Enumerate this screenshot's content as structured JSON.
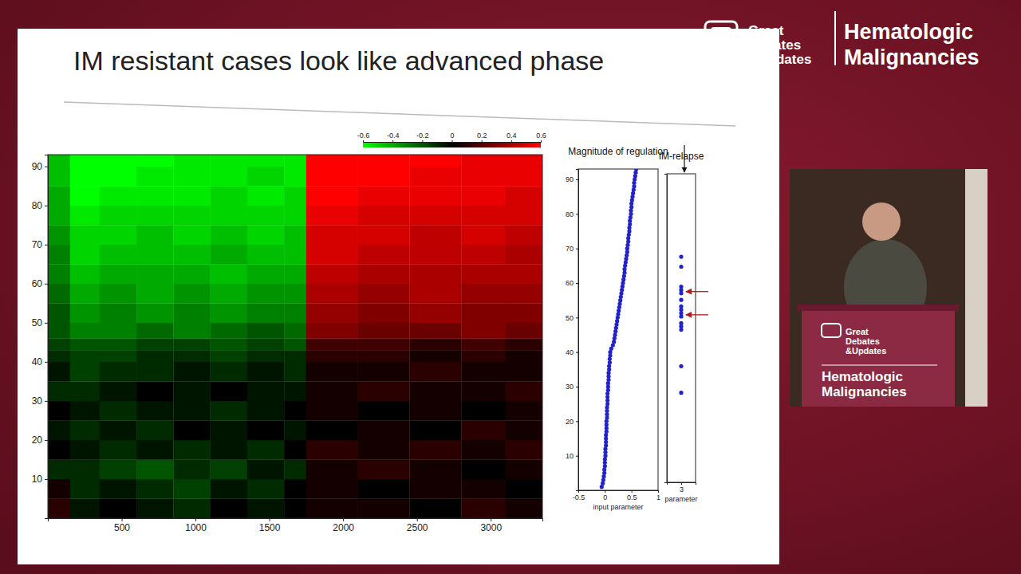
{
  "page": {
    "logo_lines": [
      "Great",
      "Debates",
      "&Updates"
    ],
    "conference_lines": [
      "Hematologic",
      "Malignancies"
    ],
    "podium_logo_lines": [
      "Great",
      "Debates",
      "&Updates"
    ],
    "podium_conference_lines": [
      "Hematologic",
      "Malignancies"
    ]
  },
  "chart_data": [
    {
      "type": "heatmap",
      "title": "IM resistant cases look like advanced phase",
      "xlim": [
        0,
        3350
      ],
      "ylim": [
        0,
        93
      ],
      "xticks": [
        500,
        1000,
        1500,
        2000,
        2500,
        3000
      ],
      "yticks": [
        10,
        20,
        30,
        40,
        50,
        60,
        70,
        80,
        90
      ],
      "x_edges": [
        0,
        150,
        350,
        600,
        850,
        1100,
        1350,
        1600,
        1750,
        2100,
        2450,
        2800,
        3100,
        3350
      ],
      "y_edges": [
        0,
        5,
        10,
        15,
        20,
        25,
        30,
        35,
        40,
        43,
        46,
        50,
        55,
        60,
        65,
        70,
        75,
        80,
        85,
        90,
        93
      ],
      "cells": [
        [
          0.1,
          -0.05,
          0,
          -0.05,
          -0.1,
          0,
          -0.05,
          0,
          0.05,
          0.05,
          0,
          0.1,
          0.05
        ],
        [
          0.05,
          -0.1,
          -0.05,
          -0.1,
          -0.15,
          -0.05,
          -0.1,
          0,
          0.05,
          0,
          0.05,
          0.05,
          0
        ],
        [
          -0.1,
          -0.1,
          -0.15,
          -0.2,
          -0.1,
          -0.15,
          -0.05,
          -0.1,
          0.05,
          0.1,
          0.05,
          0,
          0.05
        ],
        [
          0,
          -0.05,
          -0.1,
          -0.05,
          -0.1,
          -0.05,
          -0.1,
          0,
          0.1,
          0.05,
          0.1,
          0.05,
          0.1
        ],
        [
          -0.05,
          -0.1,
          -0.05,
          -0.1,
          0,
          -0.05,
          0,
          -0.05,
          0,
          0.05,
          0,
          0.1,
          0.05
        ],
        [
          0,
          -0.05,
          -0.1,
          -0.05,
          -0.05,
          -0.1,
          -0.05,
          0,
          0.05,
          0,
          0.05,
          0,
          0.05
        ],
        [
          -0.1,
          -0.1,
          -0.05,
          0,
          -0.05,
          0,
          -0.05,
          -0.05,
          0.05,
          0.1,
          0.05,
          0.05,
          0.1
        ],
        [
          -0.05,
          -0.15,
          -0.1,
          -0.1,
          -0.05,
          -0.1,
          -0.05,
          -0.1,
          0.05,
          0.05,
          0.1,
          0.05,
          0.05
        ],
        [
          -0.1,
          -0.15,
          -0.15,
          -0.1,
          -0.1,
          -0.15,
          -0.1,
          -0.1,
          0.1,
          0.1,
          0.05,
          0.1,
          0.05
        ],
        [
          -0.15,
          -0.2,
          -0.2,
          -0.15,
          -0.15,
          -0.2,
          -0.15,
          -0.2,
          0.15,
          0.15,
          0.1,
          0.15,
          0.1
        ],
        [
          -0.2,
          -0.3,
          -0.3,
          -0.25,
          -0.3,
          -0.25,
          -0.2,
          -0.25,
          0.3,
          0.25,
          0.25,
          0.3,
          0.25
        ],
        [
          -0.2,
          -0.35,
          -0.3,
          -0.35,
          -0.3,
          -0.35,
          -0.3,
          -0.3,
          0.35,
          0.3,
          0.35,
          0.3,
          0.3
        ],
        [
          -0.25,
          -0.4,
          -0.35,
          -0.4,
          -0.35,
          -0.4,
          -0.35,
          -0.35,
          0.4,
          0.35,
          0.4,
          0.35,
          0.35
        ],
        [
          -0.3,
          -0.45,
          -0.4,
          -0.4,
          -0.4,
          -0.45,
          -0.4,
          -0.4,
          0.45,
          0.4,
          0.4,
          0.4,
          0.4
        ],
        [
          -0.3,
          -0.5,
          -0.45,
          -0.45,
          -0.45,
          -0.4,
          -0.45,
          -0.45,
          0.5,
          0.45,
          0.45,
          0.45,
          0.4
        ],
        [
          -0.35,
          -0.5,
          -0.5,
          -0.45,
          -0.5,
          -0.45,
          -0.5,
          -0.45,
          0.5,
          0.5,
          0.45,
          0.5,
          0.45
        ],
        [
          -0.4,
          -0.55,
          -0.5,
          -0.5,
          -0.5,
          -0.5,
          -0.5,
          -0.5,
          0.55,
          0.5,
          0.5,
          0.5,
          0.5
        ],
        [
          -0.4,
          -0.6,
          -0.55,
          -0.55,
          -0.55,
          -0.5,
          -0.55,
          -0.5,
          0.6,
          0.55,
          0.55,
          0.55,
          0.5
        ],
        [
          -0.45,
          -0.6,
          -0.6,
          -0.55,
          -0.55,
          -0.55,
          -0.5,
          -0.55,
          0.6,
          0.6,
          0.55,
          0.55,
          0.55
        ],
        [
          -0.45,
          -0.6,
          -0.6,
          -0.6,
          -0.55,
          -0.55,
          -0.55,
          -0.55,
          0.6,
          0.6,
          0.6,
          0.55,
          0.55
        ]
      ],
      "color_range": [
        -0.6,
        0.6
      ],
      "color_ticks": [
        -0.6,
        -0.4,
        -0.2,
        0,
        0.2,
        0.4,
        0.6
      ]
    },
    {
      "type": "scatter",
      "title": "Magnitude of regulation",
      "x_label": "input parameter",
      "xlim": [
        -0.5,
        1
      ],
      "ylim": [
        0,
        93
      ],
      "xticks": [
        -0.5,
        0,
        0.5,
        1
      ],
      "yticks": [
        10,
        20,
        30,
        40,
        50,
        60,
        70,
        80,
        90
      ],
      "color": "#2222cc",
      "marker": "circle",
      "x": [
        -0.06,
        -0.04,
        -0.03,
        -0.02,
        -0.01,
        -0.01,
        0,
        0,
        0,
        0.01,
        0.01,
        0.01,
        0.02,
        0.02,
        0.02,
        0.02,
        0.03,
        0.03,
        0.03,
        0.03,
        0.04,
        0.04,
        0.04,
        0.04,
        0.05,
        0.05,
        0.05,
        0.05,
        0.06,
        0.06,
        0.06,
        0.07,
        0.07,
        0.07,
        0.08,
        0.08,
        0.09,
        0.09,
        0.1,
        0.1,
        0.12,
        0.15,
        0.17,
        0.18,
        0.19,
        0.2,
        0.21,
        0.22,
        0.23,
        0.24,
        0.25,
        0.26,
        0.27,
        0.28,
        0.29,
        0.3,
        0.31,
        0.32,
        0.33,
        0.34,
        0.35,
        0.36,
        0.37,
        0.37,
        0.38,
        0.39,
        0.4,
        0.41,
        0.42,
        0.42,
        0.43,
        0.44,
        0.44,
        0.45,
        0.46,
        0.46,
        0.47,
        0.47,
        0.48,
        0.49,
        0.49,
        0.5,
        0.5,
        0.51,
        0.52,
        0.53,
        0.54,
        0.55,
        0.55,
        0.56,
        0.57,
        0.58,
        0.59
      ],
      "y": [
        1,
        2,
        3,
        4,
        5,
        6,
        7,
        8,
        9,
        10,
        11,
        12,
        13,
        14,
        15,
        16,
        17,
        18,
        19,
        20,
        21,
        22,
        23,
        24,
        25,
        26,
        27,
        28,
        29,
        30,
        31,
        32,
        33,
        34,
        35,
        36,
        37,
        38,
        39,
        40,
        41,
        42,
        43,
        44,
        45,
        46,
        47,
        48,
        49,
        50,
        51,
        52,
        53,
        54,
        55,
        56,
        57,
        58,
        59,
        60,
        61,
        62,
        63,
        64,
        65,
        66,
        67,
        68,
        69,
        70,
        71,
        72,
        73,
        74,
        75,
        76,
        77,
        78,
        79,
        80,
        81,
        82,
        83,
        84,
        85,
        86,
        87,
        88,
        89,
        90,
        91,
        92,
        93
      ]
    },
    {
      "type": "scatter",
      "title": "IM-relapse",
      "x_label": "parameter",
      "xlim": [
        2.5,
        3.5
      ],
      "ylim": [
        0,
        93
      ],
      "xticks": [
        3
      ],
      "tick_labels": "x",
      "color": "#2222cc",
      "marker": "circle",
      "x": [
        3,
        3,
        3,
        3,
        3,
        3,
        3,
        3,
        3,
        3,
        3,
        3,
        3,
        3,
        3
      ],
      "y": [
        27,
        35,
        46,
        47,
        48,
        50,
        51,
        52,
        53,
        55,
        57,
        58,
        59,
        65,
        68
      ],
      "highlight_y": [
        57.5,
        50.5
      ]
    }
  ]
}
